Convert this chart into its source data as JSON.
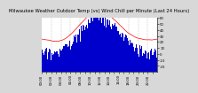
{
  "title": "Milwaukee Weather Outdoor Temp (vs) Wind Chill per Minute (Last 24 Hours)",
  "background_color": "#d8d8d8",
  "plot_bg_color": "#ffffff",
  "bar_color": "#0000cc",
  "line_color": "#ff0000",
  "num_points": 1440,
  "ylim": [
    -30,
    60
  ],
  "y_ticks": [
    60,
    50,
    40,
    30,
    20,
    10,
    0,
    -10,
    -20
  ],
  "grid_color": "#999999",
  "title_fontsize": 3.8,
  "tick_fontsize": 2.8,
  "n_gridlines": 12
}
